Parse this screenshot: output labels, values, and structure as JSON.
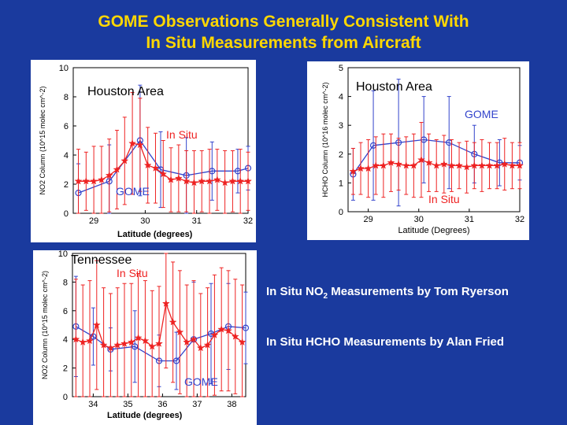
{
  "title": {
    "line1": "GOME Observations Generally Consistent With",
    "line2": "In Situ Measurements from Aircraft"
  },
  "notes": {
    "no2_prefix": "In Situ NO",
    "no2_sub": "2",
    "no2_suffix": " Measurements by Tom Ryerson",
    "hcho": "In Situ HCHO Measurements by Alan Fried"
  },
  "colors": {
    "background": "#1a3a9e",
    "title": "#ffd700",
    "gome": "#3344cc",
    "insitu": "#ee2222"
  },
  "chart_data": [
    {
      "id": "no2-houston",
      "type": "line",
      "region_label": "Houston Area",
      "xlabel": "Latitude (degrees)",
      "ylabel": "NO2 Column (10^15 molec cm^-2)",
      "xlim": [
        28.6,
        32.0
      ],
      "ylim": [
        0,
        10
      ],
      "xticks": [
        29,
        30,
        31,
        32
      ],
      "yticks": [
        0,
        2,
        4,
        6,
        8,
        10
      ],
      "series": [
        {
          "name": "GOME",
          "color": "#3344cc",
          "marker": "circle",
          "x": [
            28.7,
            29.3,
            29.9,
            30.3,
            30.8,
            31.3,
            31.8,
            32.0
          ],
          "y": [
            1.4,
            2.2,
            5.0,
            3.0,
            2.6,
            2.9,
            2.9,
            3.1
          ],
          "err": [
            2.0,
            2.5,
            3.8,
            2.6,
            2.6,
            2.0,
            1.5,
            1.5
          ]
        },
        {
          "name": "In Situ",
          "color": "#ee2222",
          "marker": "star",
          "x": [
            28.7,
            28.85,
            29.0,
            29.15,
            29.3,
            29.45,
            29.6,
            29.75,
            29.9,
            30.05,
            30.2,
            30.35,
            30.5,
            30.65,
            30.8,
            30.95,
            31.1,
            31.25,
            31.4,
            31.55,
            31.7,
            31.85,
            32.0
          ],
          "y": [
            2.2,
            2.2,
            2.2,
            2.3,
            2.6,
            3.0,
            3.6,
            4.8,
            4.7,
            3.3,
            3.1,
            2.7,
            2.3,
            2.4,
            2.2,
            2.1,
            2.2,
            2.2,
            2.3,
            2.1,
            2.2,
            2.2,
            2.2
          ],
          "err": [
            2.2,
            2.0,
            2.4,
            2.3,
            2.5,
            2.7,
            3.0,
            3.5,
            3.2,
            2.6,
            2.4,
            2.3,
            2.2,
            2.3,
            2.1,
            2.2,
            2.1,
            2.2,
            2.1,
            2.2,
            2.1,
            2.2,
            2.0
          ]
        }
      ],
      "labels": {
        "gome": "GOME",
        "insitu": "In Situ"
      }
    },
    {
      "id": "hcho-houston",
      "type": "line",
      "region_label": "Houston Area",
      "xlabel": "Latitude (Degrees)",
      "ylabel": "HCHO Column (10^16 molec cm^-2)",
      "xlim": [
        28.6,
        32.0
      ],
      "ylim": [
        0,
        5
      ],
      "xticks": [
        29,
        30,
        31,
        32
      ],
      "yticks": [
        0,
        1,
        2,
        3,
        4,
        5
      ],
      "series": [
        {
          "name": "GOME",
          "color": "#3344cc",
          "marker": "circle",
          "x": [
            28.7,
            29.1,
            29.6,
            30.1,
            30.6,
            31.1,
            31.6,
            32.0
          ],
          "y": [
            1.3,
            2.3,
            2.4,
            2.5,
            2.4,
            2.0,
            1.7,
            1.7
          ],
          "err": [
            0.9,
            1.9,
            2.2,
            1.5,
            1.6,
            1.0,
            0.8,
            0.6
          ]
        },
        {
          "name": "In Situ",
          "color": "#ee2222",
          "marker": "star",
          "x": [
            28.7,
            28.85,
            29.0,
            29.15,
            29.3,
            29.45,
            29.6,
            29.75,
            29.9,
            30.05,
            30.2,
            30.35,
            30.5,
            30.65,
            30.8,
            30.95,
            31.1,
            31.25,
            31.4,
            31.55,
            31.7,
            31.85,
            32.0
          ],
          "y": [
            1.4,
            1.5,
            1.5,
            1.6,
            1.6,
            1.7,
            1.65,
            1.6,
            1.6,
            1.8,
            1.7,
            1.6,
            1.65,
            1.6,
            1.6,
            1.55,
            1.6,
            1.6,
            1.6,
            1.6,
            1.65,
            1.6,
            1.6
          ],
          "err": [
            0.8,
            0.9,
            1.0,
            1.0,
            1.1,
            1.0,
            0.9,
            1.0,
            1.1,
            1.3,
            1.0,
            0.9,
            1.0,
            0.9,
            0.8,
            0.9,
            0.8,
            0.9,
            0.8,
            0.8,
            0.9,
            0.8,
            0.8
          ]
        }
      ],
      "labels": {
        "gome": "GOME",
        "insitu": "In Situ"
      }
    },
    {
      "id": "no2-tennessee",
      "type": "line",
      "region_label": "Tennessee",
      "xlabel": "Latitude (degrees)",
      "ylabel": "NO2 Column (10^15 molec cm^-2)",
      "xlim": [
        33.4,
        38.4
      ],
      "ylim": [
        0,
        10
      ],
      "xticks": [
        34,
        35,
        36,
        37,
        38
      ],
      "yticks": [
        0,
        2,
        4,
        6,
        8,
        10
      ],
      "series": [
        {
          "name": "GOME",
          "color": "#3344cc",
          "marker": "circle",
          "x": [
            33.5,
            34.0,
            34.5,
            35.2,
            35.9,
            36.4,
            36.9,
            37.4,
            37.9,
            38.4
          ],
          "y": [
            4.9,
            4.2,
            3.3,
            3.5,
            2.5,
            2.5,
            4.0,
            4.4,
            4.9,
            4.8
          ],
          "err": [
            3.5,
            2.0,
            1.5,
            2.5,
            1.8,
            2.0,
            4.0,
            3.5,
            3.0,
            2.5
          ]
        },
        {
          "name": "In Situ",
          "color": "#ee2222",
          "marker": "star",
          "x": [
            33.5,
            33.7,
            33.9,
            34.1,
            34.3,
            34.5,
            34.7,
            34.9,
            35.1,
            35.3,
            35.5,
            35.7,
            35.9,
            36.1,
            36.3,
            36.5,
            36.7,
            36.9,
            37.1,
            37.3,
            37.5,
            37.7,
            37.9,
            38.1,
            38.3
          ],
          "y": [
            4.0,
            3.8,
            3.9,
            5.0,
            3.6,
            3.4,
            3.6,
            3.7,
            3.8,
            4.1,
            3.9,
            3.5,
            3.7,
            6.5,
            5.2,
            4.5,
            3.8,
            4.0,
            3.4,
            3.6,
            4.3,
            4.7,
            4.6,
            4.2,
            3.8
          ],
          "err": [
            4.2,
            4.0,
            4.2,
            4.5,
            4.0,
            3.8,
            4.0,
            4.2,
            4.1,
            4.5,
            4.2,
            3.9,
            4.0,
            4.5,
            4.2,
            4.3,
            4.0,
            4.1,
            3.8,
            4.0,
            4.2,
            4.3,
            4.2,
            4.0,
            4.0
          ]
        }
      ],
      "labels": {
        "gome": "GOME",
        "insitu": "In Situ"
      }
    }
  ]
}
